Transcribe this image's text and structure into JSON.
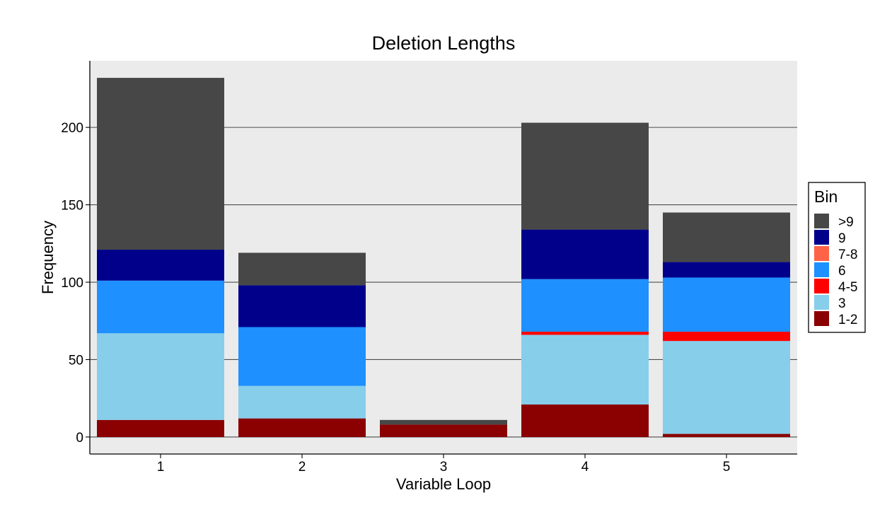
{
  "chart_data": {
    "type": "bar",
    "stacked": true,
    "title": "Deletion Lengths",
    "xlabel": "Variable Loop",
    "ylabel": "Frequency",
    "categories": [
      "1",
      "2",
      "3",
      "4",
      "5"
    ],
    "ylim": [
      -11,
      243
    ],
    "yticks": [
      0,
      50,
      100,
      150,
      200
    ],
    "grid": true,
    "legend": {
      "title": "Bin",
      "position": "right"
    },
    "series": [
      {
        "name": "1-2",
        "color": "#8B0000",
        "values": [
          11,
          12,
          8,
          21,
          2
        ]
      },
      {
        "name": "3",
        "color": "#87CEEB",
        "values": [
          56,
          21,
          0,
          45,
          60
        ]
      },
      {
        "name": "4-5",
        "color": "#FF0000",
        "values": [
          0,
          0,
          0,
          2,
          6
        ]
      },
      {
        "name": "6",
        "color": "#1E90FF",
        "values": [
          34,
          38,
          0,
          34,
          35
        ]
      },
      {
        "name": "7-8",
        "color": "#FF6347",
        "values": [
          0,
          0,
          0,
          0,
          0
        ]
      },
      {
        "name": "9",
        "color": "#00008B",
        "values": [
          20,
          27,
          0,
          32,
          10
        ]
      },
      {
        "name": ">9",
        "color": "#474747",
        "values": [
          111,
          21,
          3,
          69,
          32
        ]
      }
    ],
    "legend_order": [
      ">9",
      "9",
      "7-8",
      "6",
      "4-5",
      "3",
      "1-2"
    ]
  }
}
